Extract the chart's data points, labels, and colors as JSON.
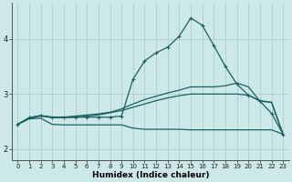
{
  "x": [
    0,
    1,
    2,
    3,
    4,
    5,
    6,
    7,
    8,
    9,
    10,
    11,
    12,
    13,
    14,
    15,
    16,
    17,
    18,
    19,
    20,
    21,
    22,
    23
  ],
  "line_bottom": [
    2.45,
    2.55,
    2.56,
    2.45,
    2.44,
    2.44,
    2.44,
    2.44,
    2.44,
    2.44,
    2.38,
    2.36,
    2.36,
    2.36,
    2.36,
    2.35,
    2.35,
    2.35,
    2.35,
    2.35,
    2.35,
    2.35,
    2.35,
    2.27
  ],
  "line_mid1": [
    2.45,
    2.56,
    2.6,
    2.57,
    2.57,
    2.58,
    2.6,
    2.62,
    2.66,
    2.7,
    2.76,
    2.82,
    2.88,
    2.93,
    2.97,
    3.0,
    3.0,
    3.0,
    3.0,
    3.0,
    2.98,
    2.88,
    2.85,
    2.27
  ],
  "line_mid2": [
    2.45,
    2.57,
    2.61,
    2.58,
    2.58,
    2.6,
    2.62,
    2.64,
    2.67,
    2.73,
    2.82,
    2.9,
    2.96,
    3.02,
    3.07,
    3.13,
    3.13,
    3.13,
    3.15,
    3.2,
    3.13,
    2.87,
    2.85,
    2.27
  ],
  "line_peak": [
    2.45,
    2.57,
    2.61,
    2.58,
    2.58,
    2.58,
    2.58,
    2.58,
    2.58,
    2.6,
    3.27,
    3.6,
    3.75,
    3.85,
    4.05,
    4.38,
    4.25,
    3.88,
    3.5,
    3.18,
    2.98,
    2.87,
    2.65,
    2.27
  ],
  "bg_color": "#cce8e8",
  "grid_color_major": "#b0cccc",
  "grid_color_minor": "#c8e0e0",
  "line_color": "#1a6060",
  "xlabel": "Humidex (Indice chaleur)",
  "ylim": [
    1.8,
    4.65
  ],
  "xlim": [
    -0.5,
    23.5
  ],
  "yticks": [
    2,
    3,
    4
  ],
  "xticks": [
    0,
    1,
    2,
    3,
    4,
    5,
    6,
    7,
    8,
    9,
    10,
    11,
    12,
    13,
    14,
    15,
    16,
    17,
    18,
    19,
    20,
    21,
    22,
    23
  ]
}
